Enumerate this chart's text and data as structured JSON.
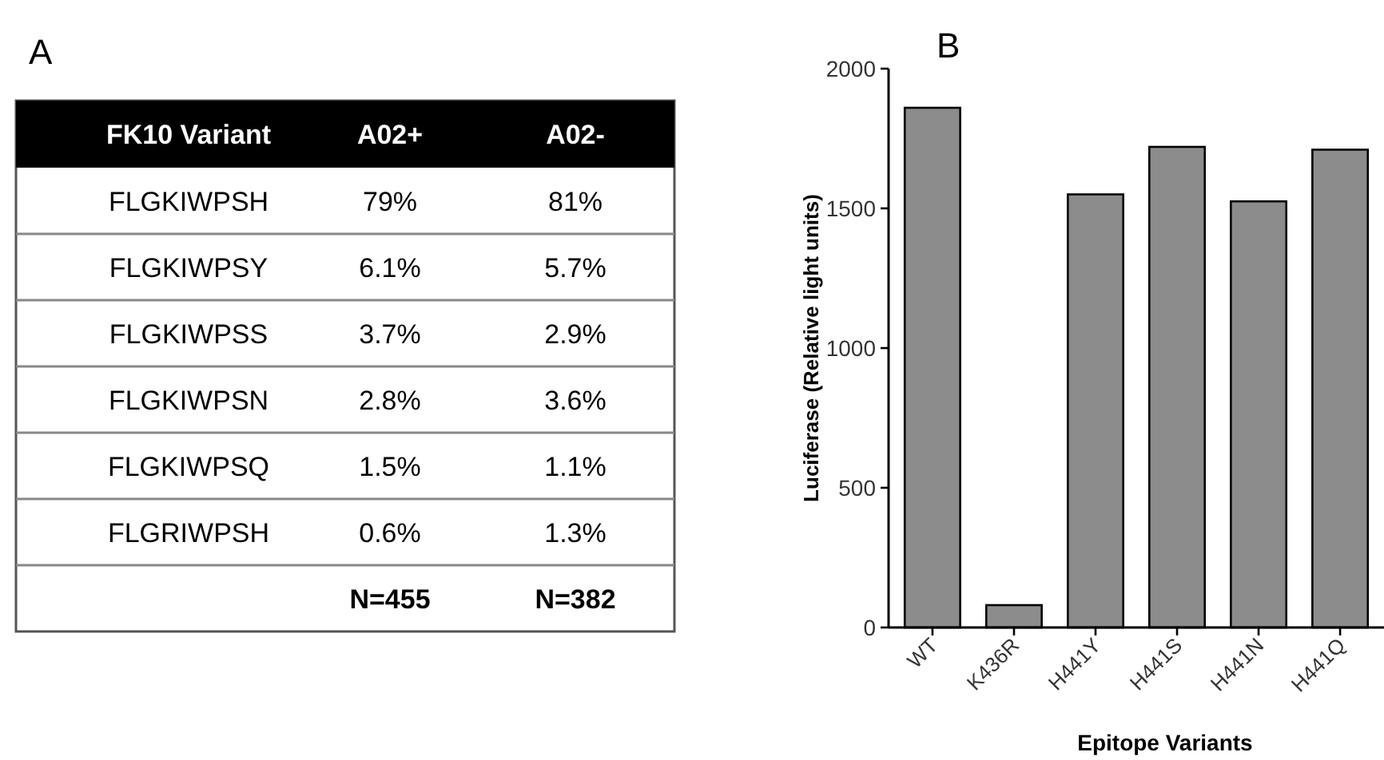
{
  "chart_data": [
    {
      "type": "other",
      "title": "A",
      "legend_title": "FK10 Variant",
      "categories": [
        "FLGKIWPSH",
        "FLGKIWPSY",
        "FLGKIWPSS",
        "FLGKIWPSN",
        "FLGKIWPSQ",
        "FLGRIWPSH"
      ],
      "annotations": [
        "A02+",
        "A02-",
        "79%",
        "81%",
        "6.1%",
        "5.7%",
        "3.7%",
        "2.9%",
        "2.8%",
        "3.6%",
        "1.5%",
        "1.1%",
        "0.6%",
        "1.3%",
        "N=455",
        "N=382"
      ]
    },
    {
      "type": "bar",
      "title": "B",
      "xlabel": "Epitope Variants",
      "ylabel": "Luciferase (Relative light units)",
      "categories": [
        "WT",
        "K436R",
        "H441Y",
        "H441S",
        "H441N",
        "H441Q"
      ],
      "values": [
        1860,
        80,
        1550,
        1720,
        1525,
        1710
      ],
      "color": "#8c8c8c",
      "ylim": [
        0,
        2000
      ],
      "yticks": [
        0,
        500,
        1000,
        1500,
        2000
      ]
    }
  ]
}
